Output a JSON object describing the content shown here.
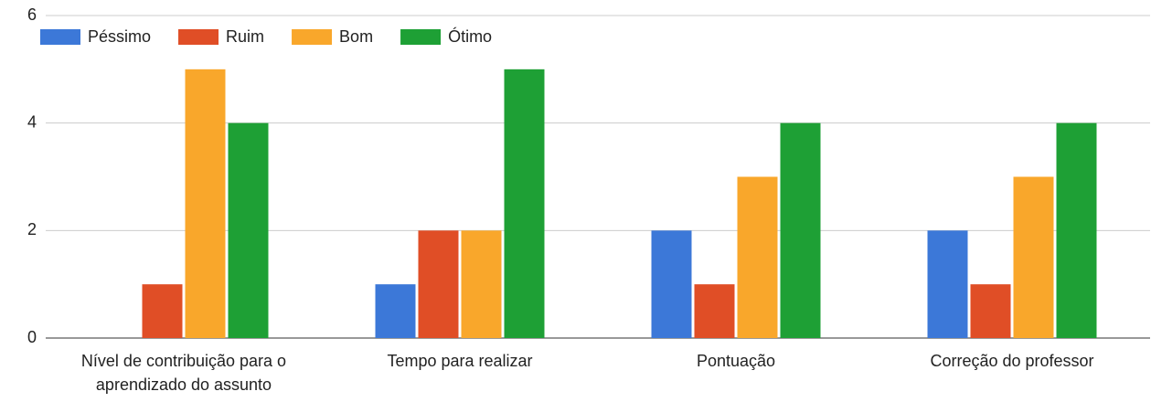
{
  "chart_data": {
    "type": "bar",
    "categories": [
      "Nível de contribuição para o aprendizado do assunto",
      "Tempo para realizar",
      "Pontuação",
      "Correção do professor"
    ],
    "series": [
      {
        "name": "Péssimo",
        "color": "#3c78d8",
        "values": [
          0,
          1,
          2,
          2
        ]
      },
      {
        "name": "Ruim",
        "color": "#e04e26",
        "values": [
          1,
          2,
          1,
          1
        ]
      },
      {
        "name": "Bom",
        "color": "#f9a72b",
        "values": [
          5,
          2,
          3,
          3
        ]
      },
      {
        "name": "Ótimo",
        "color": "#1ea035",
        "values": [
          4,
          5,
          4,
          4
        ]
      }
    ],
    "ylim": [
      0,
      6
    ],
    "yticks": [
      0,
      2,
      4,
      6
    ],
    "grid": true,
    "legend": "top-left"
  }
}
